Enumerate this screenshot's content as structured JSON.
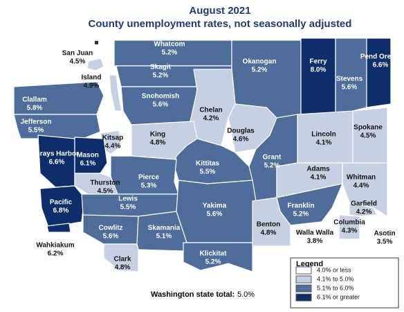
{
  "header": {
    "title": "August 2021",
    "subtitle": "County unemployment rates, not seasonally adjusted"
  },
  "counties": [
    {
      "name": "San Juan",
      "rate": "4.5%",
      "color": "#c6d0e2"
    },
    {
      "name": "Whatcom",
      "rate": "5.2%",
      "color": "#4f6d9a"
    },
    {
      "name": "Skagit",
      "rate": "5.2%",
      "color": "#4f6d9a"
    },
    {
      "name": "Island",
      "rate": "4.9%",
      "color": "#c6d0e2"
    },
    {
      "name": "Snohomish",
      "rate": "5.6%",
      "color": "#4f6d9a"
    },
    {
      "name": "Clallam",
      "rate": "5.8%",
      "color": "#4f6d9a"
    },
    {
      "name": "Jefferson",
      "rate": "5.5%",
      "color": "#4f6d9a"
    },
    {
      "name": "Okanogan",
      "rate": "5.2%",
      "color": "#4f6d9a"
    },
    {
      "name": "Ferry",
      "rate": "8.0%",
      "color": "#0e2d6b"
    },
    {
      "name": "Stevens",
      "rate": "5.6%",
      "color": "#4f6d9a"
    },
    {
      "name": "Pend Oreille",
      "rate": "6.6%",
      "color": "#0e2d6b"
    },
    {
      "name": "Chelan",
      "rate": "4.2%",
      "color": "#c6d0e2"
    },
    {
      "name": "Douglas",
      "rate": "4.6%",
      "color": "#c6d0e2"
    },
    {
      "name": "King",
      "rate": "4.8%",
      "color": "#c6d0e2"
    },
    {
      "name": "Kitsap",
      "rate": "4.4%",
      "color": "#c6d0e2"
    },
    {
      "name": "Grays Harbor",
      "rate": "6.6%",
      "color": "#0e2d6b"
    },
    {
      "name": "Mason",
      "rate": "6.1%",
      "color": "#0e2d6b"
    },
    {
      "name": "Grant",
      "rate": "5.2%",
      "color": "#4f6d9a"
    },
    {
      "name": "Lincoln",
      "rate": "4.1%",
      "color": "#c6d0e2"
    },
    {
      "name": "Spokane",
      "rate": "4.5%",
      "color": "#c6d0e2"
    },
    {
      "name": "Kittitas",
      "rate": "5.5%",
      "color": "#4f6d9a"
    },
    {
      "name": "Pierce",
      "rate": "5.3%",
      "color": "#4f6d9a"
    },
    {
      "name": "Thurston",
      "rate": "4.5%",
      "color": "#c6d0e2"
    },
    {
      "name": "Adams",
      "rate": "4.1%",
      "color": "#c6d0e2"
    },
    {
      "name": "Whitman",
      "rate": "4.4%",
      "color": "#c6d0e2"
    },
    {
      "name": "Pacific",
      "rate": "6.8%",
      "color": "#0e2d6b"
    },
    {
      "name": "Lewis",
      "rate": "5.5%",
      "color": "#4f6d9a"
    },
    {
      "name": "Yakima",
      "rate": "5.6%",
      "color": "#4f6d9a"
    },
    {
      "name": "Franklin",
      "rate": "5.2%",
      "color": "#4f6d9a"
    },
    {
      "name": "Garfield",
      "rate": "4.2%",
      "color": "#c6d0e2"
    },
    {
      "name": "Columbia",
      "rate": "4.3%",
      "color": "#c6d0e2"
    },
    {
      "name": "Asotin",
      "rate": "3.5%",
      "color": "#ffffff"
    },
    {
      "name": "Walla Walla",
      "rate": "3.8%",
      "color": "#ffffff"
    },
    {
      "name": "Benton",
      "rate": "4.8%",
      "color": "#c6d0e2"
    },
    {
      "name": "Wahkiakum",
      "rate": "6.2%",
      "color": "#0e2d6b"
    },
    {
      "name": "Cowlitz",
      "rate": "5.6%",
      "color": "#4f6d9a"
    },
    {
      "name": "Skamania",
      "rate": "5.1%",
      "color": "#4f6d9a"
    },
    {
      "name": "Clark",
      "rate": "4.8%",
      "color": "#c6d0e2"
    },
    {
      "name": "Klickitat",
      "rate": "5.2%",
      "color": "#4f6d9a"
    }
  ],
  "legend": {
    "title": "Legend",
    "items": [
      {
        "label": "4.0% or less",
        "color": "#ffffff"
      },
      {
        "label": "4.1% to 5.0%",
        "color": "#c6d0e2"
      },
      {
        "label": "5.1% to 6.0%",
        "color": "#4f6d9a"
      },
      {
        "label": "6.1% or greater",
        "color": "#0e2d6b"
      }
    ]
  },
  "state_total": {
    "label": "Washington state total:",
    "value": "5.0%"
  }
}
